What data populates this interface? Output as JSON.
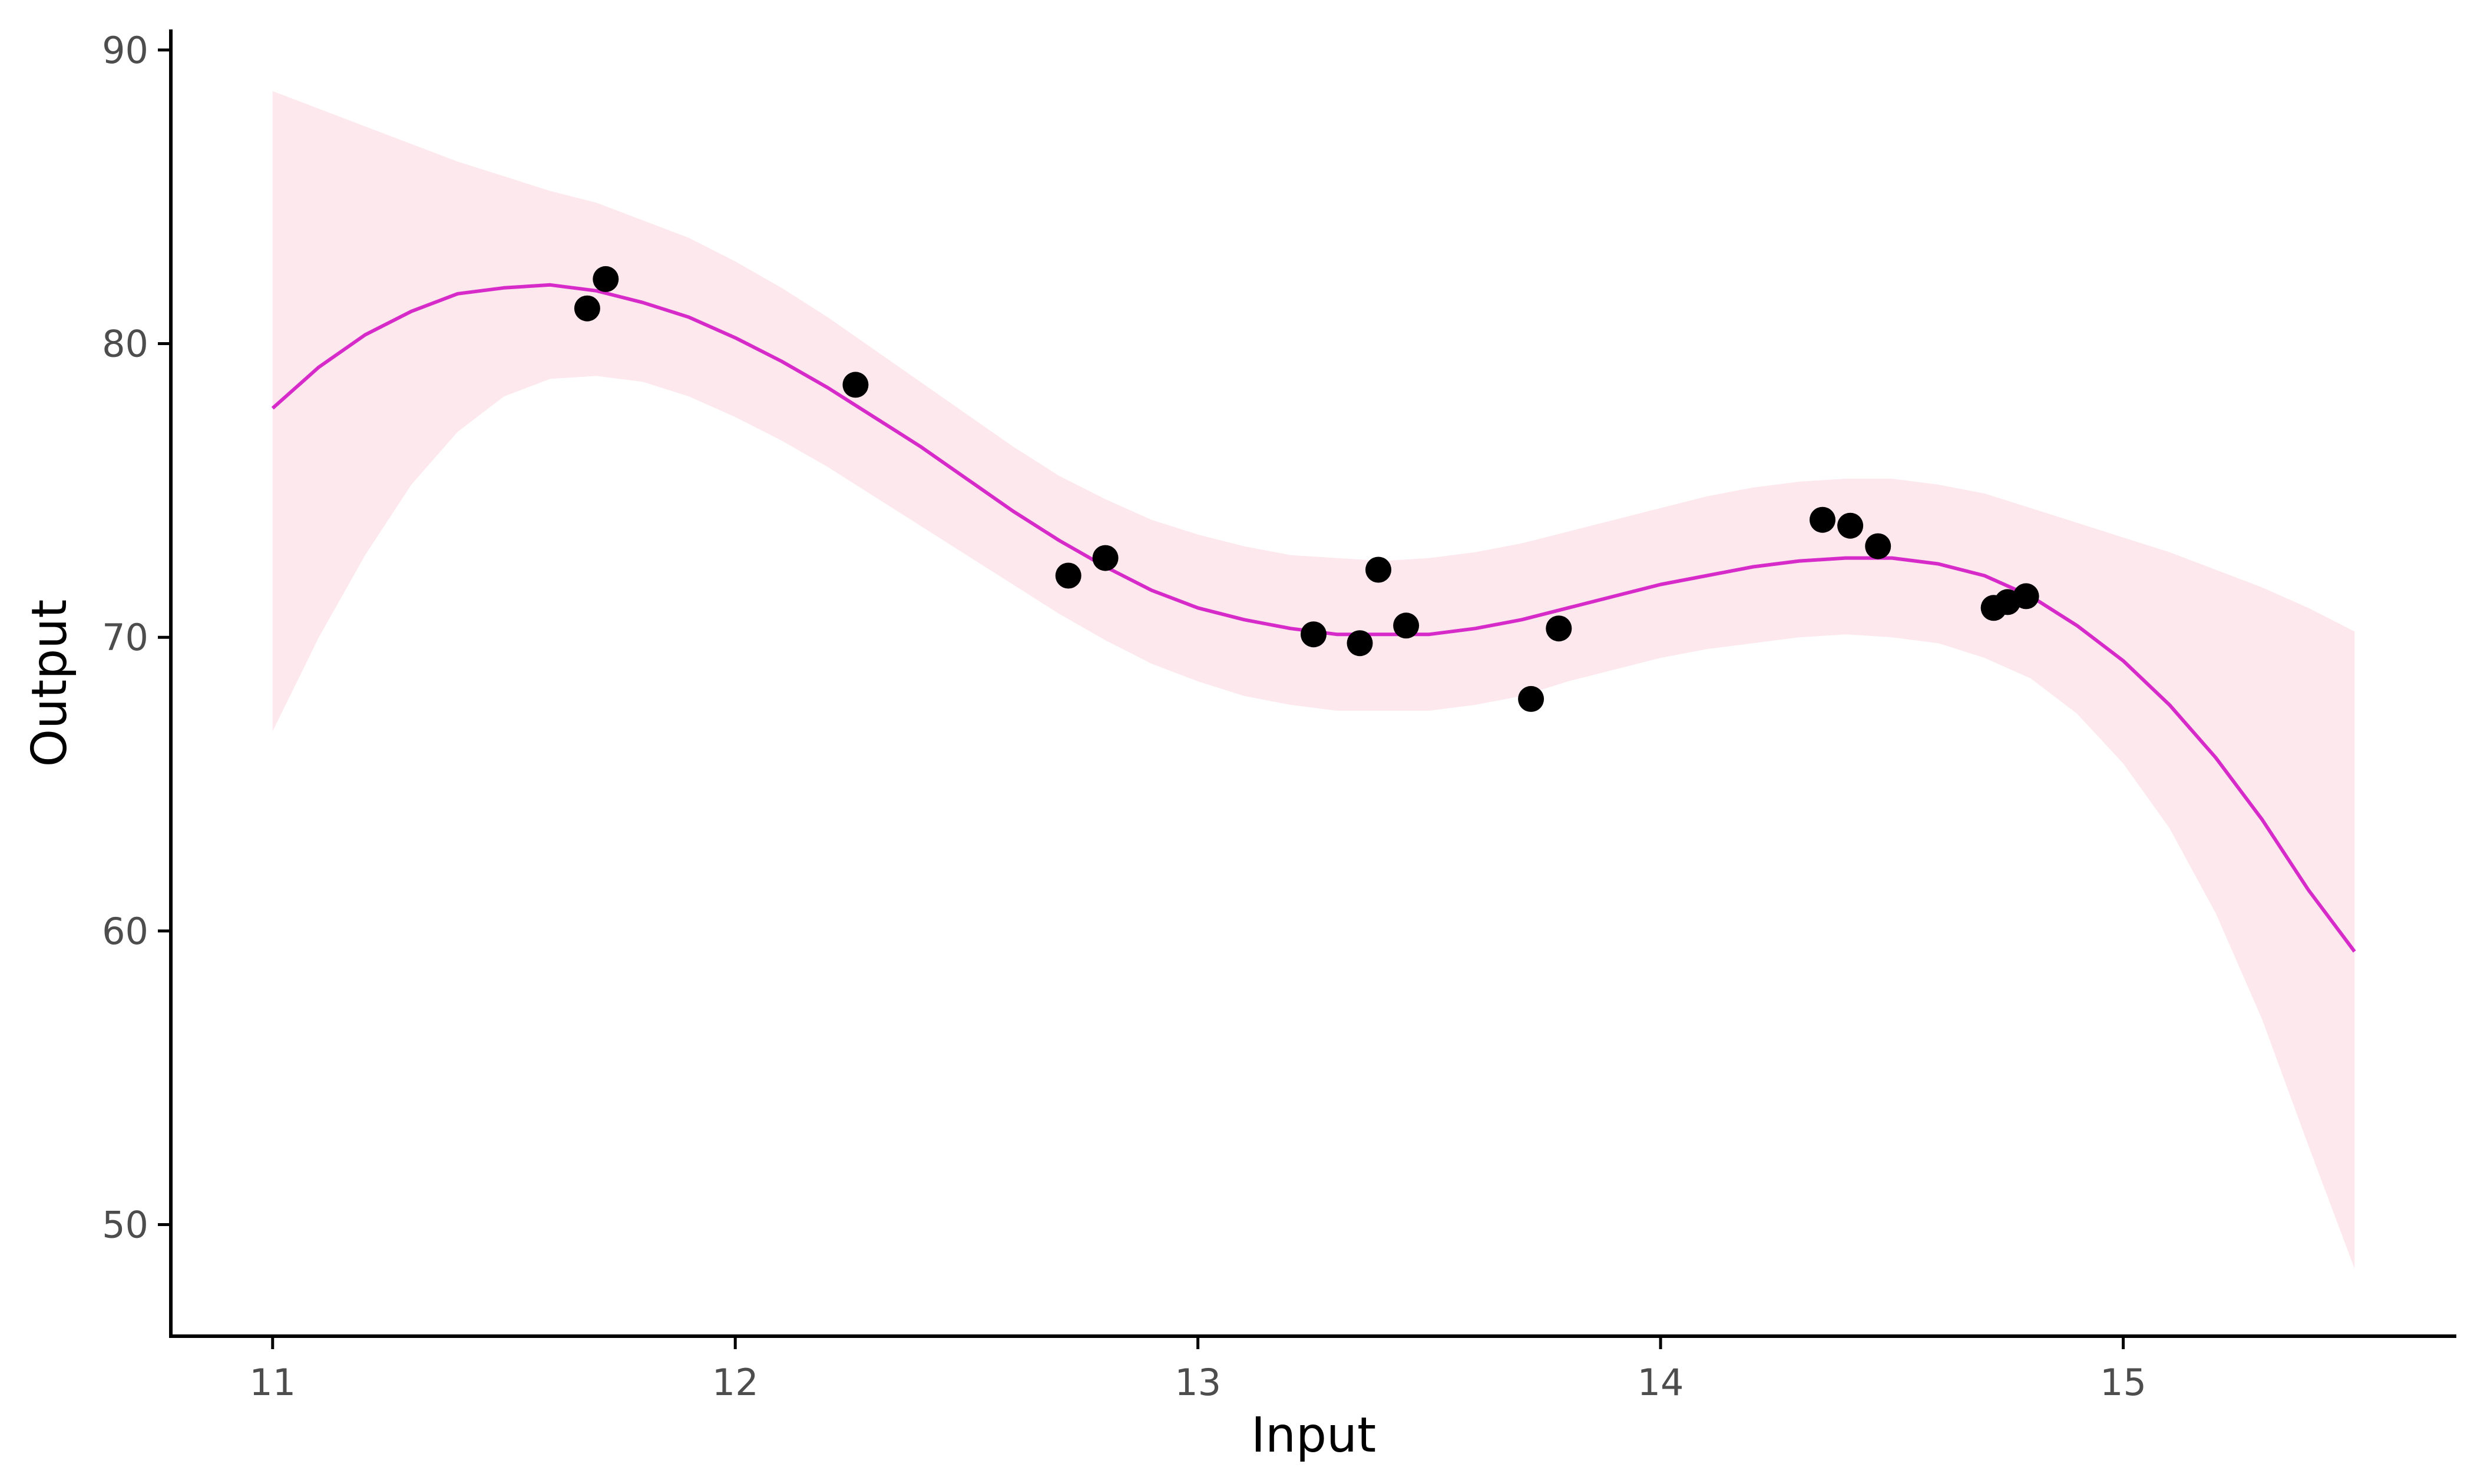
{
  "chart_data": {
    "type": "scatter",
    "xlabel": "Input",
    "ylabel": "Output",
    "xlim": [
      10.78,
      15.72
    ],
    "ylim": [
      46.2,
      90.7
    ],
    "x_ticks": [
      11,
      12,
      13,
      14,
      15
    ],
    "y_ticks": [
      50,
      60,
      70,
      80,
      90
    ],
    "x_tick_labels": [
      "11",
      "12",
      "13",
      "14",
      "15"
    ],
    "y_tick_labels": [
      "50",
      "60",
      "70",
      "80",
      "90"
    ],
    "grid": false,
    "legend": "none",
    "colors": {
      "points": "#000000",
      "fit_line": "#d62bc9",
      "confidence_band": "#fde8ee"
    },
    "series": [
      {
        "type": "scatter",
        "x": [
          11.68,
          11.72,
          12.26,
          12.72,
          12.8,
          13.25,
          13.35,
          13.39,
          13.45,
          13.72,
          13.78,
          14.35,
          14.41,
          14.47,
          14.72,
          14.75,
          14.79
        ],
        "y": [
          81.2,
          82.2,
          78.6,
          72.1,
          72.7,
          70.1,
          69.8,
          72.3,
          70.4,
          67.9,
          70.3,
          74.0,
          73.8,
          73.1,
          71.0,
          71.2,
          71.4
        ]
      },
      {
        "type": "line",
        "x": [
          11.0,
          11.1,
          11.2,
          11.3,
          11.4,
          11.5,
          11.6,
          11.7,
          11.8,
          11.9,
          12.0,
          12.1,
          12.2,
          12.3,
          12.4,
          12.5,
          12.6,
          12.7,
          12.8,
          12.9,
          13.0,
          13.1,
          13.2,
          13.3,
          13.4,
          13.5,
          13.6,
          13.7,
          13.8,
          13.9,
          14.0,
          14.1,
          14.2,
          14.3,
          14.4,
          14.5,
          14.6,
          14.7,
          14.8,
          14.9,
          15.0,
          15.1,
          15.2,
          15.3,
          15.4,
          15.5
        ],
        "y": [
          77.8,
          79.2,
          80.3,
          81.1,
          81.7,
          81.9,
          82.0,
          81.8,
          81.4,
          80.9,
          80.2,
          79.4,
          78.5,
          77.5,
          76.5,
          75.4,
          74.3,
          73.3,
          72.4,
          71.6,
          71.0,
          70.6,
          70.3,
          70.1,
          70.1,
          70.1,
          70.3,
          70.6,
          71.0,
          71.4,
          71.8,
          72.1,
          72.4,
          72.6,
          72.7,
          72.7,
          72.5,
          72.1,
          71.4,
          70.4,
          69.2,
          67.7,
          65.9,
          63.8,
          61.4,
          59.3
        ]
      },
      {
        "type": "area",
        "x": [
          11.0,
          11.1,
          11.2,
          11.3,
          11.4,
          11.5,
          11.6,
          11.7,
          11.8,
          11.9,
          12.0,
          12.1,
          12.2,
          12.3,
          12.4,
          12.5,
          12.6,
          12.7,
          12.8,
          12.9,
          13.0,
          13.1,
          13.2,
          13.3,
          13.4,
          13.5,
          13.6,
          13.7,
          13.8,
          13.9,
          14.0,
          14.1,
          14.2,
          14.3,
          14.4,
          14.5,
          14.6,
          14.7,
          14.8,
          14.9,
          15.0,
          15.1,
          15.2,
          15.3,
          15.4,
          15.5
        ],
        "y_lower": [
          66.8,
          70.0,
          72.8,
          75.2,
          77.0,
          78.2,
          78.8,
          78.9,
          78.7,
          78.2,
          77.5,
          76.7,
          75.8,
          74.8,
          73.8,
          72.8,
          71.8,
          70.8,
          69.9,
          69.1,
          68.5,
          68.0,
          67.7,
          67.5,
          67.5,
          67.5,
          67.7,
          68.0,
          68.5,
          68.9,
          69.3,
          69.6,
          69.8,
          70.0,
          70.1,
          70.0,
          69.8,
          69.3,
          68.6,
          67.4,
          65.7,
          63.5,
          60.6,
          57.0,
          52.7,
          48.5
        ],
        "y_upper": [
          88.6,
          88.0,
          87.4,
          86.8,
          86.2,
          85.7,
          85.2,
          84.8,
          84.2,
          83.6,
          82.8,
          81.9,
          80.9,
          79.8,
          78.7,
          77.6,
          76.5,
          75.5,
          74.7,
          74.0,
          73.5,
          73.1,
          72.8,
          72.7,
          72.6,
          72.7,
          72.9,
          73.2,
          73.6,
          74.0,
          74.4,
          74.8,
          75.1,
          75.3,
          75.4,
          75.4,
          75.2,
          74.9,
          74.4,
          73.9,
          73.4,
          72.9,
          72.3,
          71.7,
          71.0,
          70.2
        ]
      }
    ]
  }
}
